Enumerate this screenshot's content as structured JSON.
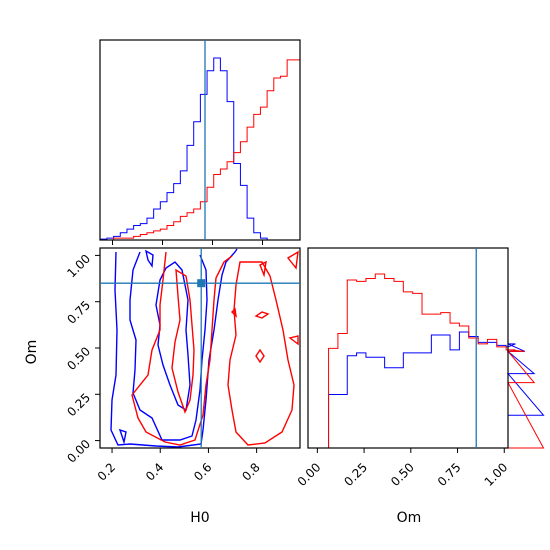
{
  "chart_data": {
    "type": "corner",
    "parameters": [
      "H0",
      "Om"
    ],
    "truth": {
      "H0": 0.57,
      "Om": 0.85
    },
    "colors": {
      "series_a": "#0000ff",
      "series_b": "#ff0000",
      "truth": "#1f77b4"
    },
    "panels": [
      {
        "id": "hist-H0",
        "type": "histogram",
        "parameter": "H0",
        "xlim": [
          0.15,
          0.95
        ],
        "bin_width": 0.0267,
        "series": [
          {
            "color": "#0000ff",
            "counts": [
              0.5,
              1,
              2,
              4,
              6,
              8,
              9,
              12,
              17,
              21,
              26,
              31,
              38,
              52,
              65,
              80,
              93,
              100,
              93,
              76,
              42,
              30,
              12,
              4,
              1,
              0,
              0,
              0,
              0,
              0
            ]
          },
          {
            "color": "#ff0000",
            "counts": [
              0,
              0,
              1,
              1,
              1,
              2,
              3,
              4,
              5,
              6,
              8,
              10,
              13,
              15,
              17,
              21,
              29,
              36,
              39,
              43,
              48,
              54,
              62,
              69,
              73,
              82,
              89,
              90,
              99,
              99
            ]
          }
        ]
      },
      {
        "id": "hist-Om",
        "type": "histogram",
        "parameter": "Om",
        "xlim": [
          -0.05,
          1.02
        ],
        "bin_width": 0.05,
        "series": [
          {
            "color": "#0000ff",
            "counts": [
              0,
              0,
              36,
              36,
              62,
              64,
              61,
              61,
              54,
              54,
              64,
              64,
              64,
              76,
              76,
              66,
              78,
              75,
              71,
              71,
              69,
              68,
              70,
              65,
              50,
              22
            ]
          },
          {
            "color": "#ff0000",
            "counts": [
              0,
              0,
              67,
              77,
              113,
              112,
              114,
              117,
              114,
              112,
              105,
              104,
              90,
              90,
              91,
              84,
              82,
              74,
              70,
              73,
              68,
              66,
              66,
              65,
              44,
              0
            ]
          }
        ]
      },
      {
        "id": "contour-H0-Om",
        "type": "contour",
        "xlim": [
          0.15,
          0.98
        ],
        "ylim": [
          -0.04,
          1.04
        ]
      }
    ],
    "axes": {
      "H0": {
        "label": "H0",
        "ticks": [
          0.2,
          0.4,
          0.6,
          0.8
        ],
        "tick_labels": [
          "0.2",
          "0.4",
          "0.6",
          "0.8"
        ]
      },
      "Om_y": {
        "label": "Om",
        "ticks": [
          0.0,
          0.25,
          0.5,
          0.75,
          1.0
        ],
        "tick_labels": [
          "0.00",
          "0.25",
          "0.50",
          "0.75",
          "1.00"
        ]
      },
      "Om_x": {
        "label": "Om",
        "ticks": [
          0.0,
          0.25,
          0.5,
          0.75,
          1.0
        ],
        "tick_labels": [
          "0.00",
          "0.25",
          "0.50",
          "0.75",
          "1.00"
        ]
      }
    }
  }
}
